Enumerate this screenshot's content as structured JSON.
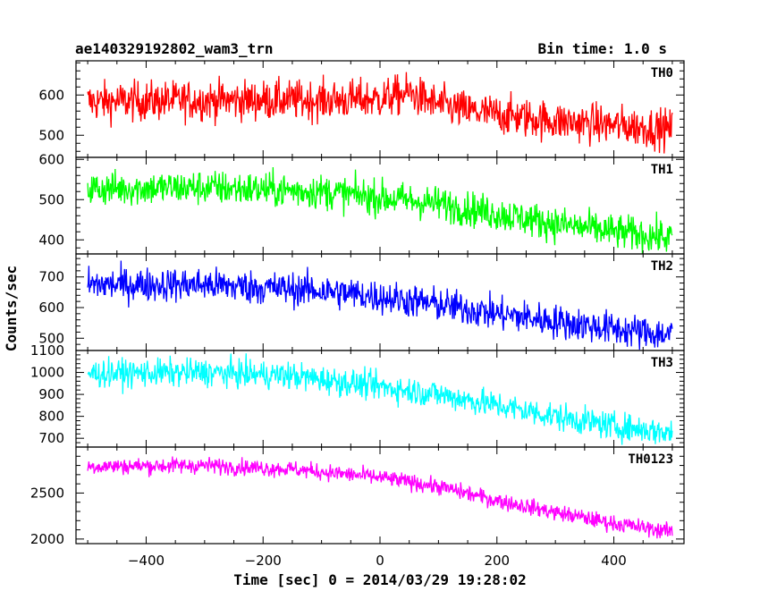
{
  "chart_data": {
    "type": "line",
    "title": "ae140329192802_wam3_trn",
    "subtitle": "Bin time: 1.0 s",
    "xlabel": "Time [sec] 0 = 2014/03/29 19:28:02",
    "ylabel": "Counts/sec",
    "xlim": [
      -520,
      520
    ],
    "x_ticks": [
      -400,
      -200,
      0,
      200,
      400
    ],
    "x_tick_labels": [
      "−400",
      "−200",
      "0",
      "200",
      "400"
    ],
    "x_range": [
      -500,
      500
    ],
    "grid": false,
    "panels": [
      {
        "name": "TH0",
        "color": "#ff0000",
        "ylim": [
          445,
          685
        ],
        "y_ticks": [
          500,
          600
        ],
        "y_tick_labels": [
          "500",
          "600"
        ],
        "trend": [
          [
            -500,
            583
          ],
          [
            -300,
            587
          ],
          [
            -100,
            587
          ],
          [
            0,
            590
          ],
          [
            50,
            605
          ],
          [
            90,
            580
          ],
          [
            150,
            560
          ],
          [
            300,
            535
          ],
          [
            400,
            525
          ],
          [
            500,
            515
          ]
        ],
        "noise": 25
      },
      {
        "name": "TH1",
        "color": "#00ff00",
        "ylim": [
          365,
          605
        ],
        "y_ticks": [
          400,
          500,
          600
        ],
        "y_tick_labels": [
          "400",
          "500",
          "600"
        ],
        "trend": [
          [
            -500,
            527
          ],
          [
            -300,
            530
          ],
          [
            -100,
            520
          ],
          [
            0,
            505
          ],
          [
            100,
            490
          ],
          [
            200,
            465
          ],
          [
            300,
            440
          ],
          [
            400,
            420
          ],
          [
            500,
            405
          ]
        ],
        "noise": 22
      },
      {
        "name": "TH2",
        "color": "#0000ff",
        "ylim": [
          460,
          775
        ],
        "y_ticks": [
          500,
          600,
          700
        ],
        "y_tick_labels": [
          "500",
          "600",
          "700"
        ],
        "trend": [
          [
            -500,
            675
          ],
          [
            -300,
            675
          ],
          [
            -100,
            655
          ],
          [
            0,
            635
          ],
          [
            100,
            610
          ],
          [
            200,
            580
          ],
          [
            300,
            555
          ],
          [
            400,
            530
          ],
          [
            500,
            510
          ]
        ],
        "noise": 28
      },
      {
        "name": "TH3",
        "color": "#00ffff",
        "ylim": [
          660,
          1100
        ],
        "y_ticks": [
          700,
          800,
          900,
          1000,
          1100
        ],
        "y_tick_labels": [
          "700",
          "800",
          "900",
          "1000",
          "1100"
        ],
        "trend": [
          [
            -500,
            995
          ],
          [
            -300,
            1000
          ],
          [
            -150,
            985
          ],
          [
            0,
            935
          ],
          [
            100,
            900
          ],
          [
            200,
            850
          ],
          [
            300,
            800
          ],
          [
            400,
            755
          ],
          [
            500,
            725
          ]
        ],
        "noise": 32
      },
      {
        "name": "TH0123",
        "color": "#ff00ff",
        "ylim": [
          1950,
          3000
        ],
        "y_ticks": [
          2000,
          2500
        ],
        "y_tick_labels": [
          "2000",
          "2500"
        ],
        "trend": [
          [
            -500,
            2790
          ],
          [
            -300,
            2800
          ],
          [
            -150,
            2760
          ],
          [
            0,
            2670
          ],
          [
            100,
            2570
          ],
          [
            200,
            2420
          ],
          [
            300,
            2290
          ],
          [
            400,
            2170
          ],
          [
            500,
            2080
          ]
        ],
        "noise": 45
      }
    ]
  }
}
